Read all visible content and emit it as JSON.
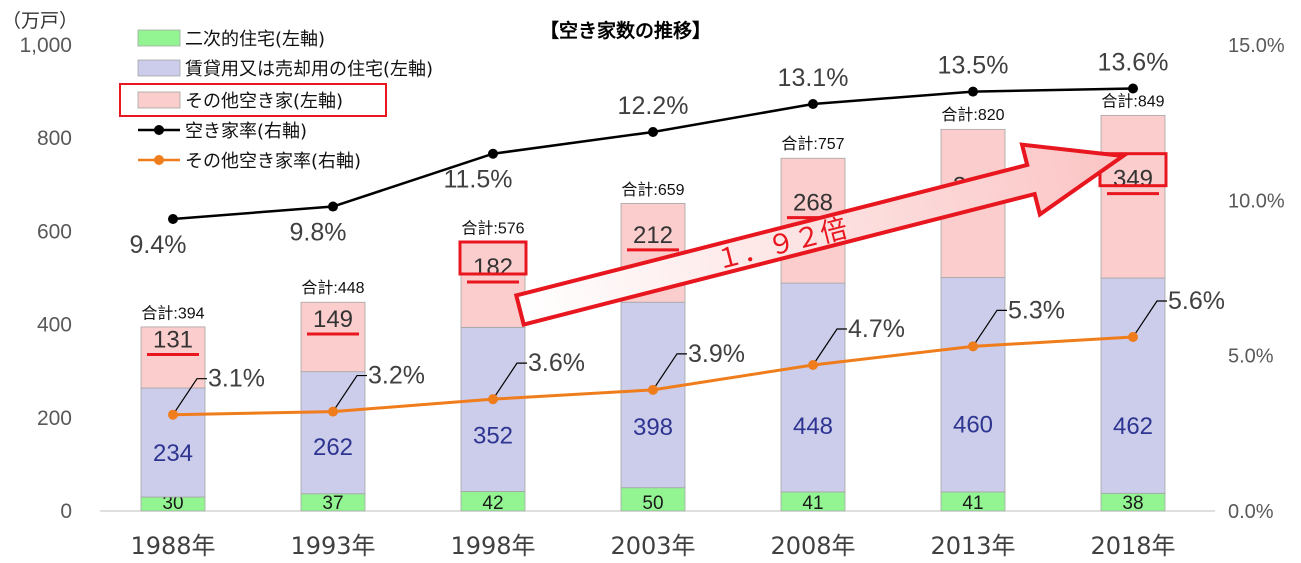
{
  "chart_data": {
    "type": "bar",
    "title": "【空き家数の推移】",
    "ylabel_left": "（万戸）",
    "categories": [
      "1988年",
      "1993年",
      "1998年",
      "2003年",
      "2008年",
      "2013年",
      "2018年"
    ],
    "y_left": {
      "ylim": [
        0,
        1000
      ],
      "ticks": [
        "0",
        "200",
        "400",
        "600",
        "800",
        "1,000"
      ],
      "tick_values": [
        0,
        200,
        400,
        600,
        800,
        1000
      ]
    },
    "y_right": {
      "ylim": [
        0,
        15
      ],
      "ticks": [
        "0.0%",
        "5.0%",
        "10.0%",
        "15.0%"
      ],
      "tick_values": [
        0,
        5,
        10,
        15
      ]
    },
    "stacked_series": [
      {
        "name": "二次的住宅(左軸)",
        "values": [
          30,
          37,
          42,
          50,
          41,
          41,
          38
        ],
        "color": "#92f592"
      },
      {
        "name": "賃貸用又は売却用の住宅(左軸)",
        "values": [
          234,
          262,
          352,
          398,
          448,
          460,
          462
        ],
        "color": "#cccceb"
      },
      {
        "name": "その他空き家(左軸)",
        "values": [
          131,
          149,
          182,
          212,
          268,
          318,
          349
        ],
        "color": "#fbcdcd"
      }
    ],
    "totals": [
      394,
      448,
      576,
      659,
      757,
      820,
      849
    ],
    "total_label": "合計:",
    "line_series": [
      {
        "name": "空き家率(右軸)",
        "values": [
          9.4,
          9.8,
          11.5,
          12.2,
          13.1,
          13.5,
          13.6
        ],
        "labels": [
          "9.4%",
          "9.8%",
          "11.5%",
          "12.2%",
          "13.1%",
          "13.5%",
          "13.6%"
        ],
        "color": "#000000"
      },
      {
        "name": "その他空き家率(右軸)",
        "values": [
          3.1,
          3.2,
          3.6,
          3.9,
          4.7,
          5.3,
          5.6
        ],
        "labels": [
          "3.1%",
          "3.2%",
          "3.6%",
          "3.9%",
          "4.7%",
          "5.3%",
          "5.6%"
        ],
        "color": "#f07d1c"
      }
    ],
    "annotation": "１．９２倍",
    "legend_placement": "top-left",
    "accent_color": "#e8161e",
    "grid": false
  }
}
